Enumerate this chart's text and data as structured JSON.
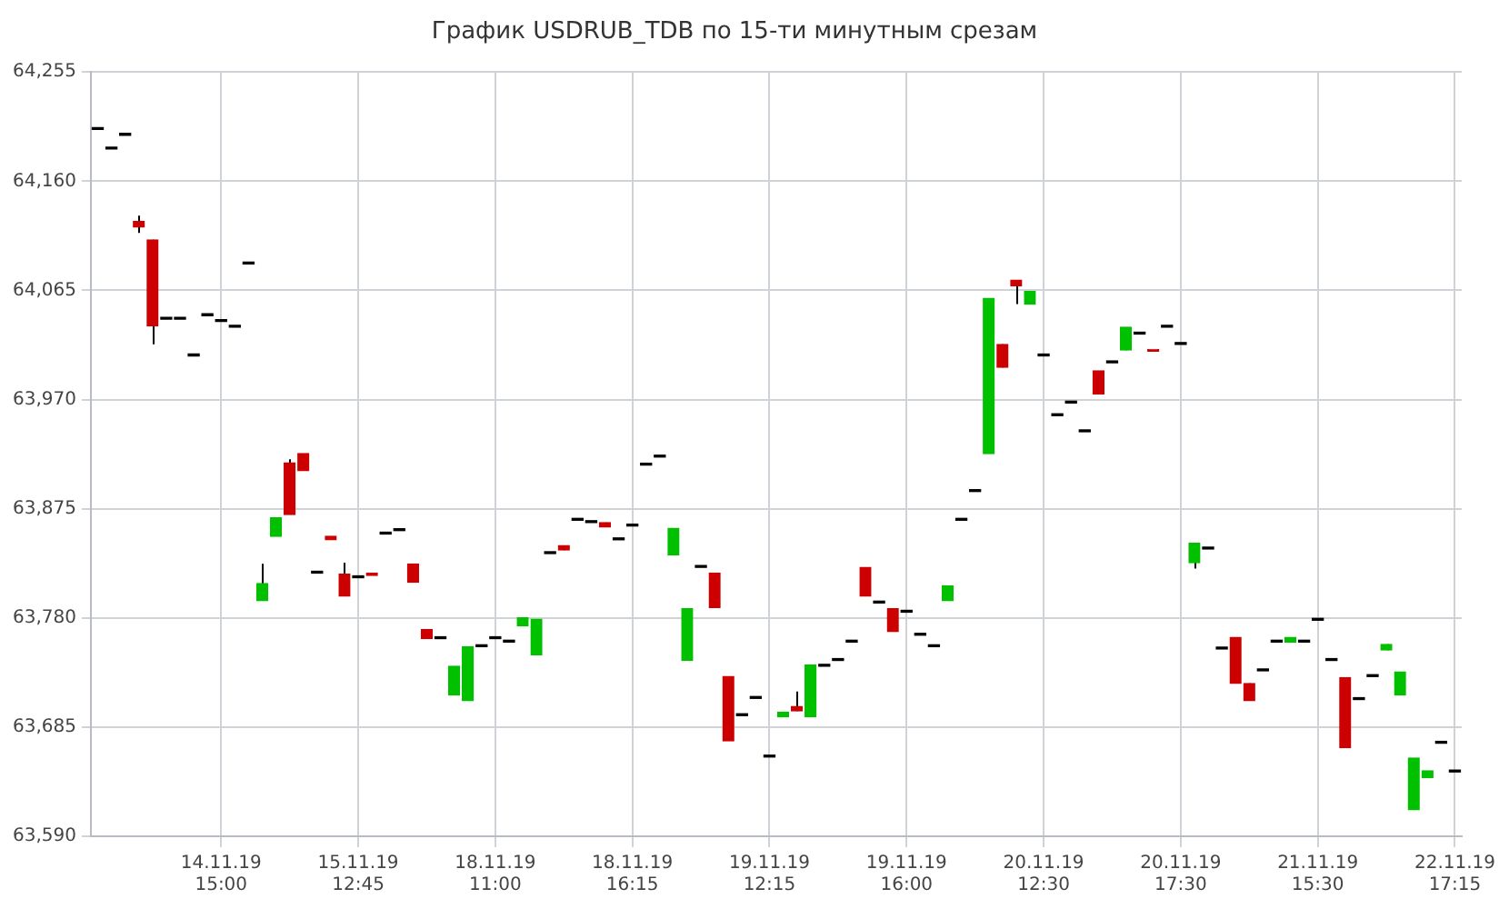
{
  "chart_data": {
    "type": "candlestick",
    "title": "График USDRUB_TDB по 15-ти минутным срезам",
    "categories": [
      null,
      null,
      null,
      null,
      null,
      null,
      null,
      null,
      null,
      "14.11.19 15:00",
      null,
      null,
      null,
      null,
      null,
      null,
      null,
      null,
      null,
      "15.11.19 12:45",
      null,
      null,
      null,
      null,
      null,
      null,
      null,
      null,
      null,
      "18.11.19 11:00",
      null,
      null,
      null,
      null,
      null,
      null,
      null,
      null,
      null,
      "18.11.19 16:15",
      null,
      null,
      null,
      null,
      null,
      null,
      null,
      null,
      null,
      "19.11.19 12:15",
      null,
      null,
      null,
      null,
      null,
      null,
      null,
      null,
      null,
      "19.11.19 16:00",
      null,
      null,
      null,
      null,
      null,
      null,
      null,
      null,
      null,
      "20.11.19 12:30",
      null,
      null,
      null,
      null,
      null,
      null,
      null,
      null,
      null,
      "20.11.19 17:30",
      null,
      null,
      null,
      null,
      null,
      null,
      null,
      null,
      null,
      "21.11.19 15:30",
      null,
      null,
      null,
      null,
      null,
      null,
      null,
      null,
      null,
      "22.11.19 17:15"
    ],
    "ohlc": [
      [
        64205,
        64205,
        64205,
        64205
      ],
      [
        64188,
        64188,
        64188,
        64188
      ],
      [
        64200,
        64200,
        64200,
        64200
      ],
      [
        64125,
        64130,
        64115,
        64120
      ],
      [
        64109,
        64109,
        64018,
        64034
      ],
      [
        64040,
        64040,
        64040,
        64040
      ],
      [
        64040,
        64040,
        64040,
        64040
      ],
      [
        64008,
        64008,
        64008,
        64008
      ],
      [
        64043,
        64043,
        64043,
        64043
      ],
      [
        64038,
        64038,
        64038,
        64038
      ],
      [
        64033,
        64033,
        64033,
        64033
      ],
      [
        64088,
        64088,
        64088,
        64088
      ],
      [
        63795,
        63827,
        63795,
        63810
      ],
      [
        63851,
        63867,
        63851,
        63867
      ],
      [
        63915,
        63918,
        63870,
        63870
      ],
      [
        63923,
        63923,
        63908,
        63908
      ],
      [
        63819,
        63819,
        63819,
        63819
      ],
      [
        63851,
        63851,
        63848,
        63848
      ],
      [
        63818,
        63828,
        63799,
        63799
      ],
      [
        63815,
        63815,
        63815,
        63815
      ],
      [
        63819,
        63819,
        63817,
        63817
      ],
      [
        63853,
        63853,
        63853,
        63853
      ],
      [
        63856,
        63856,
        63856,
        63856
      ],
      [
        63827,
        63827,
        63811,
        63811
      ],
      [
        63770,
        63770,
        63762,
        63762
      ],
      [
        63762,
        63762,
        63762,
        63762
      ],
      [
        63713,
        63738,
        63713,
        63738
      ],
      [
        63708,
        63755,
        63708,
        63755
      ],
      [
        63755,
        63755,
        63755,
        63755
      ],
      [
        63762,
        63762,
        63762,
        63762
      ],
      [
        63759,
        63759,
        63759,
        63759
      ],
      [
        63773,
        63780,
        63773,
        63780
      ],
      [
        63748,
        63779,
        63748,
        63779
      ],
      [
        63836,
        63836,
        63836,
        63836
      ],
      [
        63843,
        63843,
        63839,
        63839
      ],
      [
        63865,
        63865,
        63865,
        63865
      ],
      [
        63863,
        63863,
        63863,
        63863
      ],
      [
        63863,
        63863,
        63859,
        63859
      ],
      [
        63848,
        63848,
        63848,
        63848
      ],
      [
        63860,
        63860,
        63860,
        63860
      ],
      [
        63913,
        63913,
        63913,
        63913
      ],
      [
        63920,
        63920,
        63920,
        63920
      ],
      [
        63835,
        63858,
        63835,
        63858
      ],
      [
        63743,
        63788,
        63743,
        63788
      ],
      [
        63824,
        63824,
        63824,
        63824
      ],
      [
        63819,
        63819,
        63789,
        63789
      ],
      [
        63729,
        63729,
        63673,
        63673
      ],
      [
        63695,
        63695,
        63695,
        63695
      ],
      [
        63710,
        63710,
        63710,
        63710
      ],
      [
        63659,
        63659,
        63659,
        63659
      ],
      [
        63694,
        63698,
        63694,
        63698
      ],
      [
        63703,
        63716,
        63699,
        63699
      ],
      [
        63694,
        63739,
        63694,
        63739
      ],
      [
        63738,
        63738,
        63738,
        63738
      ],
      [
        63743,
        63743,
        63743,
        63743
      ],
      [
        63759,
        63759,
        63759,
        63759
      ],
      [
        63824,
        63824,
        63799,
        63799
      ],
      [
        63793,
        63793,
        63793,
        63793
      ],
      [
        63788,
        63788,
        63768,
        63768
      ],
      [
        63785,
        63785,
        63785,
        63785
      ],
      [
        63765,
        63765,
        63765,
        63765
      ],
      [
        63755,
        63755,
        63755,
        63755
      ],
      [
        63795,
        63808,
        63795,
        63808
      ],
      [
        63865,
        63865,
        63865,
        63865
      ],
      [
        63890,
        63890,
        63890,
        63890
      ],
      [
        63923,
        64058,
        63923,
        64058
      ],
      [
        64018,
        64018,
        63998,
        63998
      ],
      [
        64074,
        64074,
        64053,
        64069
      ],
      [
        64053,
        64064,
        64053,
        64064
      ],
      [
        64008,
        64008,
        64008,
        64008
      ],
      [
        63956,
        63956,
        63956,
        63956
      ],
      [
        63967,
        63967,
        63967,
        63967
      ],
      [
        63942,
        63942,
        63942,
        63942
      ],
      [
        63995,
        63995,
        63975,
        63975
      ],
      [
        64002,
        64002,
        64002,
        64002
      ],
      [
        64013,
        64033,
        64013,
        64033
      ],
      [
        64027,
        64027,
        64027,
        64027
      ],
      [
        64013,
        64013,
        64012,
        64012
      ],
      [
        64033,
        64033,
        64033,
        64033
      ],
      [
        64018,
        64018,
        64018,
        64018
      ],
      [
        63828,
        63845,
        63823,
        63845
      ],
      [
        63840,
        63840,
        63840,
        63840
      ],
      [
        63753,
        63753,
        63753,
        63753
      ],
      [
        63763,
        63763,
        63723,
        63723
      ],
      [
        63723,
        63723,
        63708,
        63708
      ],
      [
        63734,
        63734,
        63734,
        63734
      ],
      [
        63759,
        63759,
        63759,
        63759
      ],
      [
        63759,
        63763,
        63759,
        63763
      ],
      [
        63759,
        63759,
        63759,
        63759
      ],
      [
        63778,
        63778,
        63778,
        63778
      ],
      [
        63743,
        63743,
        63743,
        63743
      ],
      [
        63728,
        63728,
        63667,
        63667
      ],
      [
        63709,
        63709,
        63709,
        63709
      ],
      [
        63729,
        63729,
        63729,
        63729
      ],
      [
        63752,
        63757,
        63752,
        63757
      ],
      [
        63713,
        63733,
        63713,
        63733
      ],
      [
        63613,
        63658,
        63613,
        63658
      ],
      [
        63641,
        63647,
        63641,
        63647
      ],
      [
        63671,
        63671,
        63671,
        63671
      ],
      [
        63646,
        63646,
        63646,
        63646
      ]
    ],
    "colors": [
      "#000000",
      "#000000",
      "#000000",
      "#cc0000",
      "#cc0000",
      "#000000",
      "#000000",
      "#000000",
      "#000000",
      "#000000",
      "#000000",
      "#000000",
      "#00c000",
      "#00c000",
      "#cc0000",
      "#cc0000",
      "#000000",
      "#cc0000",
      "#cc0000",
      "#000000",
      "#cc0000",
      "#000000",
      "#000000",
      "#cc0000",
      "#cc0000",
      "#000000",
      "#00c000",
      "#00c000",
      "#000000",
      "#000000",
      "#000000",
      "#00c000",
      "#00c000",
      "#000000",
      "#cc0000",
      "#000000",
      "#000000",
      "#cc0000",
      "#000000",
      "#000000",
      "#000000",
      "#000000",
      "#00c000",
      "#00c000",
      "#000000",
      "#cc0000",
      "#cc0000",
      "#000000",
      "#000000",
      "#000000",
      "#00c000",
      "#cc0000",
      "#00c000",
      "#000000",
      "#000000",
      "#000000",
      "#cc0000",
      "#000000",
      "#cc0000",
      "#000000",
      "#000000",
      "#000000",
      "#00c000",
      "#000000",
      "#000000",
      "#00c000",
      "#cc0000",
      "#cc0000",
      "#00c000",
      "#000000",
      "#000000",
      "#000000",
      "#000000",
      "#cc0000",
      "#000000",
      "#00c000",
      "#000000",
      "#cc0000",
      "#000000",
      "#000000",
      "#00c000",
      "#000000",
      "#000000",
      "#cc0000",
      "#cc0000",
      "#000000",
      "#000000",
      "#00c000",
      "#000000",
      "#000000",
      "#000000",
      "#cc0000",
      "#000000",
      "#000000",
      "#00c000",
      "#00c000",
      "#00c000",
      "#00c000",
      "#000000",
      "#000000"
    ],
    "ylim": [
      63590,
      64255
    ],
    "yticks": [
      {
        "value": 63590,
        "label": "63,590"
      },
      {
        "value": 63685,
        "label": "63,685"
      },
      {
        "value": 63780,
        "label": "63,780"
      },
      {
        "value": 63875,
        "label": "63,875"
      },
      {
        "value": 63970,
        "label": "63,970"
      },
      {
        "value": 64065,
        "label": "64,065"
      },
      {
        "value": 64160,
        "label": "64,160"
      },
      {
        "value": 64255,
        "label": "64,255"
      }
    ],
    "grid": true,
    "legend": false
  }
}
